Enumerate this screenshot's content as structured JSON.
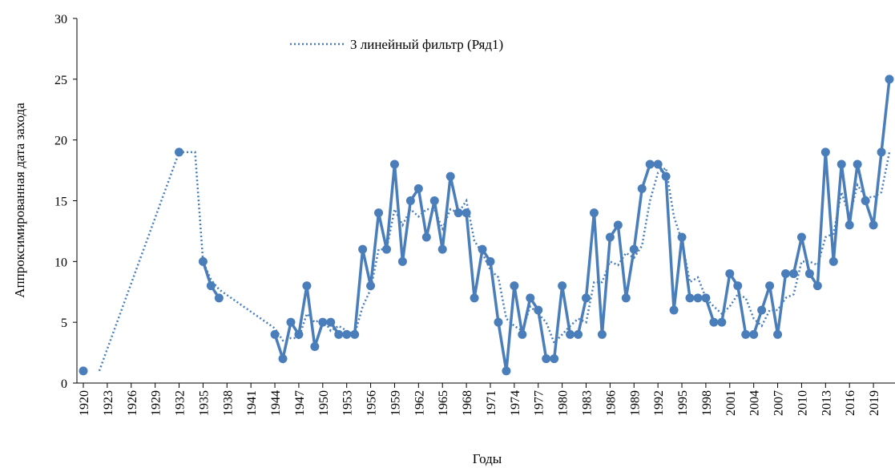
{
  "chart_data": {
    "type": "line",
    "ylabel": "Аппроксимированная дата захода",
    "xlabel": "Годы",
    "xlim": [
      1920,
      2021
    ],
    "ylim": [
      0,
      30
    ],
    "yticks": [
      0,
      5,
      10,
      15,
      20,
      25,
      30
    ],
    "xticks": [
      1920,
      1923,
      1926,
      1929,
      1932,
      1935,
      1938,
      1941,
      1944,
      1947,
      1950,
      1953,
      1956,
      1959,
      1962,
      1965,
      1968,
      1971,
      1974,
      1977,
      1980,
      1983,
      1986,
      1989,
      1992,
      1995,
      1998,
      2001,
      2004,
      2007,
      2010,
      2013,
      2016,
      2019
    ],
    "legend": "top",
    "series": [
      {
        "color": "#4a7ebb",
        "style": "solid",
        "markers": true,
        "x": [
          1920,
          1921,
          1922,
          1923,
          1924,
          1925,
          1926,
          1927,
          1928,
          1929,
          1930,
          1931,
          1932,
          1933,
          1934,
          1935,
          1936,
          1937,
          1938,
          1939,
          1940,
          1941,
          1942,
          1943,
          1944,
          1945,
          1946,
          1947,
          1948,
          1949,
          1950,
          1951,
          1952,
          1953,
          1954,
          1955,
          1956,
          1957,
          1958,
          1959,
          1960,
          1961,
          1962,
          1963,
          1964,
          1965,
          1966,
          1967,
          1968,
          1969,
          1970,
          1971,
          1972,
          1973,
          1974,
          1975,
          1976,
          1977,
          1978,
          1979,
          1980,
          1981,
          1982,
          1983,
          1984,
          1985,
          1986,
          1987,
          1988,
          1989,
          1990,
          1991,
          1992,
          1993,
          1994,
          1995,
          1996,
          1997,
          1998,
          1999,
          2000,
          2001,
          2002,
          2003,
          2004,
          2005,
          2006,
          2007,
          2008,
          2009,
          2010,
          2011,
          2012,
          2013,
          2014,
          2015,
          2016,
          2017,
          2018,
          2019,
          2020,
          2021
        ],
        "values": [
          1,
          null,
          null,
          null,
          null,
          null,
          null,
          null,
          null,
          null,
          null,
          null,
          19,
          null,
          null,
          10,
          8,
          7,
          null,
          null,
          null,
          null,
          null,
          null,
          4,
          2,
          5,
          4,
          8,
          3,
          5,
          5,
          4,
          4,
          4,
          11,
          8,
          14,
          11,
          18,
          10,
          15,
          16,
          12,
          15,
          11,
          17,
          14,
          14,
          7,
          11,
          10,
          5,
          1,
          8,
          4,
          7,
          6,
          2,
          2,
          8,
          4,
          4,
          7,
          14,
          4,
          12,
          13,
          7,
          11,
          16,
          18,
          18,
          17,
          6,
          12,
          7,
          7,
          7,
          5,
          5,
          9,
          8,
          4,
          4,
          6,
          8,
          4,
          9,
          9,
          12,
          9,
          8,
          19,
          10,
          18,
          13,
          18,
          15,
          13,
          19,
          25
        ]
      },
      {
        "name": "3 линейный фильтр (Ряд1)",
        "color": "#4a7ebb",
        "style": "dotted",
        "markers": false,
        "x": [
          1922,
          1932,
          1933,
          1934,
          1935,
          1936,
          1937,
          1944,
          1945,
          1946,
          1947,
          1948,
          1949,
          1950,
          1951,
          1952,
          1953,
          1954,
          1955,
          1956,
          1957,
          1958,
          1959,
          1960,
          1961,
          1962,
          1963,
          1964,
          1965,
          1966,
          1967,
          1968,
          1969,
          1970,
          1971,
          1972,
          1973,
          1974,
          1975,
          1976,
          1977,
          1978,
          1979,
          1980,
          1981,
          1982,
          1983,
          1984,
          1985,
          1986,
          1987,
          1988,
          1989,
          1990,
          1991,
          1992,
          1993,
          1994,
          1995,
          1996,
          1997,
          1998,
          1999,
          2000,
          2001,
          2002,
          2003,
          2004,
          2005,
          2006,
          2007,
          2008,
          2009,
          2010,
          2011,
          2012,
          2013,
          2014,
          2015,
          2016,
          2017,
          2018,
          2019,
          2020,
          2021
        ],
        "values": [
          1,
          19,
          19,
          19,
          10,
          8.5,
          7.7,
          4.5,
          3.5,
          3.7,
          3.7,
          5.7,
          5,
          5.3,
          4.3,
          4.7,
          4.3,
          4,
          6.3,
          7.7,
          11,
          11,
          14.3,
          13,
          14.3,
          13.7,
          14.3,
          14.3,
          12.7,
          14.3,
          14,
          15,
          11.7,
          10.7,
          9.3,
          8.7,
          5.3,
          4.7,
          4.3,
          6.3,
          5.7,
          5,
          3.3,
          4,
          4.7,
          5.3,
          5,
          8.3,
          8.3,
          10,
          9.7,
          10.7,
          10.3,
          11.3,
          15,
          17.3,
          17.7,
          13.7,
          11.7,
          8.3,
          8.7,
          7,
          6.3,
          5.7,
          6.3,
          7.3,
          7,
          5.3,
          4.7,
          6,
          6,
          7,
          7.3,
          10,
          10,
          9.7,
          12,
          12.3,
          15.7,
          13.7,
          16.3,
          15.3,
          15.3,
          15.7,
          19
        ]
      }
    ]
  }
}
